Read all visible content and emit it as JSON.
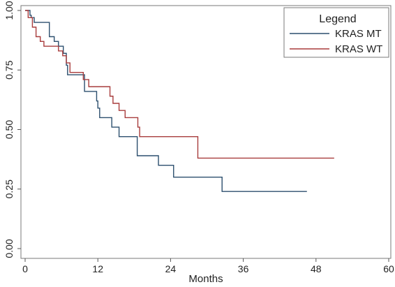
{
  "chart_data": {
    "type": "line",
    "title": "",
    "xlabel": "Months",
    "ylabel": "",
    "xlim": [
      0,
      60
    ],
    "ylim": [
      0,
      1
    ],
    "xticks": [
      "0",
      "12",
      "24",
      "36",
      "48",
      "60"
    ],
    "yticks": [
      "0.00",
      "0.25",
      "0.50",
      "0.75",
      "1.00"
    ],
    "grid": false,
    "legend": {
      "title": "Legend",
      "position": "top-right"
    },
    "series": [
      {
        "name": "KRAS MT",
        "color": "#2c4f6e",
        "x": [
          0,
          0.8,
          1.0,
          1.5,
          4.0,
          4.8,
          5.5,
          6.3,
          6.8,
          7.0,
          9.8,
          11.8,
          12.0,
          12.3,
          14.3,
          15.5,
          18.5,
          22.0,
          24.5,
          32.5,
          46.5
        ],
        "y": [
          1.0,
          0.98,
          0.97,
          0.95,
          0.89,
          0.87,
          0.85,
          0.82,
          0.77,
          0.73,
          0.66,
          0.62,
          0.59,
          0.55,
          0.51,
          0.47,
          0.39,
          0.35,
          0.3,
          0.24,
          0.24
        ]
      },
      {
        "name": "KRAS WT",
        "color": "#a83c3c",
        "x": [
          0,
          0.5,
          1.2,
          1.8,
          2.5,
          3.1,
          5.5,
          6.2,
          6.8,
          7.4,
          9.6,
          10.5,
          14.0,
          14.5,
          15.5,
          16.5,
          18.6,
          18.9,
          28.5,
          51.0
        ],
        "y": [
          1.0,
          0.97,
          0.93,
          0.89,
          0.87,
          0.85,
          0.83,
          0.81,
          0.78,
          0.74,
          0.71,
          0.68,
          0.64,
          0.61,
          0.58,
          0.55,
          0.51,
          0.47,
          0.38,
          0.38
        ]
      }
    ]
  }
}
